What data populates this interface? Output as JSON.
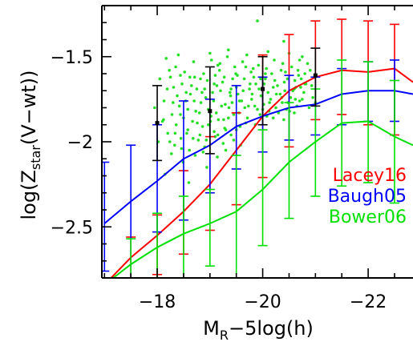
{
  "chart_data": {
    "type": "line",
    "title": "",
    "xlabel": {
      "main": "M",
      "sub": "R",
      "rest": "−5log(h)"
    },
    "ylabel": {
      "main": "log(Z",
      "sub": "star",
      "rest": "(V−wt))"
    },
    "xlim": [
      -16.95,
      -22.85
    ],
    "ylim": [
      -2.8,
      -1.2
    ],
    "xticks": [
      {
        "value": -18,
        "label": "−18"
      },
      {
        "value": -20,
        "label": "−20"
      },
      {
        "value": -22,
        "label": "−22"
      }
    ],
    "yticks": [
      {
        "value": -1.5,
        "label": "−1.5"
      },
      {
        "value": -2.0,
        "label": "−2"
      },
      {
        "value": -2.5,
        "label": "−2.5"
      }
    ],
    "legend_position": "right",
    "series": [
      {
        "name": "Lacey16",
        "color": "#ff0000",
        "points": [
          {
            "x": -17.0,
            "y": -2.84,
            "lo": -2.84,
            "hi": -2.84
          },
          {
            "x": -17.5,
            "y": -2.68,
            "lo": -2.9,
            "hi": -2.56
          },
          {
            "x": -18.0,
            "y": -2.55,
            "lo": -2.78,
            "hi": -2.43
          },
          {
            "x": -18.5,
            "y": -2.41,
            "lo": -2.66,
            "hi": -2.17
          },
          {
            "x": -19.0,
            "y": -2.25,
            "lo": -2.52,
            "hi": -1.97
          },
          {
            "x": -19.5,
            "y": -2.05,
            "lo": -2.37,
            "hi": -1.83
          },
          {
            "x": -20.0,
            "y": -1.85,
            "lo": -2.21,
            "hi": -1.49
          },
          {
            "x": -20.5,
            "y": -1.7,
            "lo": -2.03,
            "hi": -1.37
          },
          {
            "x": -21.0,
            "y": -1.62,
            "lo": -1.87,
            "hi": -1.29
          },
          {
            "x": -21.5,
            "y": -1.58,
            "lo": -1.84,
            "hi": -1.28
          },
          {
            "x": -22.0,
            "y": -1.59,
            "lo": -1.9,
            "hi": -1.29
          },
          {
            "x": -22.5,
            "y": -1.57,
            "lo": -1.96,
            "hi": -1.31
          },
          {
            "x": -22.85,
            "y": -1.65,
            "lo": -1.65,
            "hi": -1.65
          }
        ]
      },
      {
        "name": "Baugh05",
        "color": "#0000ff",
        "points": [
          {
            "x": -17.0,
            "y": -2.48,
            "lo": -2.76,
            "hi": -2.12
          },
          {
            "x": -17.5,
            "y": -2.35,
            "lo": -2.85,
            "hi": -2.02
          },
          {
            "x": -18.0,
            "y": -2.23,
            "lo": -2.53,
            "hi": -1.9
          },
          {
            "x": -18.5,
            "y": -2.1,
            "lo": -2.46,
            "hi": -1.76
          },
          {
            "x": -19.0,
            "y": -2.02,
            "lo": -2.3,
            "hi": -1.75
          },
          {
            "x": -19.5,
            "y": -1.91,
            "lo": -2.16,
            "hi": -1.67
          },
          {
            "x": -20.0,
            "y": -1.85,
            "lo": -2.06,
            "hi": -1.62
          },
          {
            "x": -20.5,
            "y": -1.8,
            "lo": -1.99,
            "hi": -1.61
          },
          {
            "x": -21.0,
            "y": -1.78,
            "lo": -1.96,
            "hi": -1.62
          },
          {
            "x": -21.5,
            "y": -1.72,
            "lo": -1.9,
            "hi": -1.57
          },
          {
            "x": -22.0,
            "y": -1.7,
            "lo": -1.88,
            "hi": -1.53
          },
          {
            "x": -22.5,
            "y": -1.7,
            "lo": -1.88,
            "hi": -1.52
          },
          {
            "x": -22.85,
            "y": -1.72,
            "lo": -1.72,
            "hi": -1.72
          }
        ]
      },
      {
        "name": "Bower06",
        "color": "#00e000",
        "points": [
          {
            "x": -17.0,
            "y": -2.84,
            "lo": -2.84,
            "hi": -2.84
          },
          {
            "x": -17.5,
            "y": -2.72,
            "lo": -2.92,
            "hi": -2.57
          },
          {
            "x": -18.0,
            "y": -2.62,
            "lo": -2.85,
            "hi": -2.42
          },
          {
            "x": -18.5,
            "y": -2.54,
            "lo": -2.8,
            "hi": -2.32
          },
          {
            "x": -19.0,
            "y": -2.48,
            "lo": -2.73,
            "hi": -2.28
          },
          {
            "x": -19.5,
            "y": -2.41,
            "lo": -2.82,
            "hi": -2.08
          },
          {
            "x": -20.0,
            "y": -2.28,
            "lo": -2.61,
            "hi": -1.93
          },
          {
            "x": -20.5,
            "y": -2.12,
            "lo": -2.45,
            "hi": -1.77
          },
          {
            "x": -21.0,
            "y": -2.0,
            "lo": -2.32,
            "hi": -1.69
          },
          {
            "x": -21.5,
            "y": -1.89,
            "lo": -2.26,
            "hi": -1.52
          },
          {
            "x": -22.0,
            "y": -1.88,
            "lo": -2.24,
            "hi": -1.53
          },
          {
            "x": -22.5,
            "y": -1.97,
            "lo": -2.36,
            "hi": -1.64
          },
          {
            "x": -22.85,
            "y": -2.02,
            "lo": -2.02,
            "hi": -2.02
          }
        ]
      }
    ],
    "observed_points": {
      "color": "#000000",
      "points": [
        {
          "x": -18.0,
          "y": -1.89,
          "lo": -2.11,
          "hi": -1.67
        },
        {
          "x": -19.0,
          "y": -1.82,
          "lo": -2.07,
          "hi": -1.56
        },
        {
          "x": -20.0,
          "y": -1.69,
          "lo": -1.9,
          "hi": -1.5
        },
        {
          "x": -21.0,
          "y": -1.61,
          "lo": -1.79,
          "hi": -1.45
        }
      ]
    },
    "scatter": {
      "color": "#22e022",
      "points": [
        [
          -18.17,
          -1.51
        ],
        [
          -18.23,
          -1.58
        ],
        [
          -18.31,
          -1.68
        ],
        [
          -18.42,
          -1.79
        ],
        [
          -18.5,
          -1.86
        ],
        [
          -18.56,
          -1.95
        ],
        [
          -18.63,
          -1.72
        ],
        [
          -18.71,
          -1.62
        ],
        [
          -18.8,
          -1.83
        ],
        [
          -18.86,
          -1.91
        ],
        [
          -18.92,
          -1.74
        ],
        [
          -19.01,
          -1.88
        ],
        [
          -19.08,
          -1.66
        ],
        [
          -19.15,
          -1.55
        ],
        [
          -19.22,
          -1.79
        ],
        [
          -19.3,
          -1.93
        ],
        [
          -19.38,
          -1.71
        ],
        [
          -19.45,
          -1.84
        ],
        [
          -19.52,
          -1.61
        ],
        [
          -19.6,
          -1.76
        ],
        [
          -19.68,
          -1.89
        ],
        [
          -19.75,
          -1.69
        ],
        [
          -19.82,
          -1.57
        ],
        [
          -19.9,
          -1.81
        ],
        [
          -19.97,
          -1.73
        ],
        [
          -20.05,
          -1.63
        ],
        [
          -20.13,
          -1.77
        ],
        [
          -20.2,
          -1.86
        ],
        [
          -20.28,
          -1.67
        ],
        [
          -20.36,
          -1.74
        ],
        [
          -20.43,
          -1.59
        ],
        [
          -20.51,
          -1.82
        ],
        [
          -20.6,
          -1.69
        ],
        [
          -20.68,
          -1.61
        ],
        [
          -20.75,
          -1.75
        ],
        [
          -20.82,
          -1.66
        ],
        [
          -20.9,
          -1.58
        ],
        [
          -18.25,
          -1.62
        ],
        [
          -18.38,
          -1.73
        ],
        [
          -18.47,
          -1.66
        ],
        [
          -18.58,
          -1.81
        ],
        [
          -18.67,
          -1.88
        ],
        [
          -18.75,
          -1.69
        ],
        [
          -18.83,
          -1.77
        ],
        [
          -18.95,
          -1.64
        ],
        [
          -19.05,
          -1.71
        ],
        [
          -19.12,
          -1.83
        ],
        [
          -19.2,
          -1.7
        ],
        [
          -19.27,
          -1.62
        ],
        [
          -19.35,
          -1.86
        ],
        [
          -19.42,
          -1.77
        ],
        [
          -19.5,
          -1.68
        ],
        [
          -19.57,
          -1.91
        ],
        [
          -19.65,
          -1.63
        ],
        [
          -19.73,
          -1.79
        ],
        [
          -19.8,
          -1.72
        ],
        [
          -19.87,
          -1.66
        ],
        [
          -19.95,
          -1.84
        ],
        [
          -20.02,
          -1.78
        ],
        [
          -20.1,
          -1.71
        ],
        [
          -20.17,
          -1.6
        ],
        [
          -20.25,
          -1.8
        ],
        [
          -20.33,
          -1.72
        ],
        [
          -20.41,
          -1.65
        ],
        [
          -20.48,
          -1.77
        ],
        [
          -20.57,
          -1.7
        ],
        [
          -20.65,
          -1.79
        ],
        [
          -20.72,
          -1.68
        ],
        [
          -20.8,
          -1.6
        ],
        [
          -18.2,
          -1.95
        ],
        [
          -18.33,
          -2.02
        ],
        [
          -18.45,
          -1.98
        ],
        [
          -18.61,
          -2.05
        ],
        [
          -18.78,
          -1.99
        ],
        [
          -18.9,
          -2.03
        ],
        [
          -19.1,
          -1.97
        ],
        [
          -19.25,
          -2.01
        ],
        [
          -19.4,
          -1.96
        ],
        [
          -18.13,
          -1.76
        ],
        [
          -18.28,
          -1.84
        ],
        [
          -18.52,
          -1.59
        ],
        [
          -18.69,
          -1.53
        ],
        [
          -18.88,
          -1.6
        ],
        [
          -19.03,
          -1.52
        ],
        [
          -19.18,
          -1.58
        ],
        [
          -19.33,
          -1.5
        ],
        [
          -19.47,
          -1.56
        ],
        [
          -19.62,
          -1.53
        ],
        [
          -19.78,
          -1.59
        ],
        [
          -19.92,
          -1.55
        ],
        [
          -20.07,
          -1.57
        ],
        [
          -20.22,
          -1.52
        ],
        [
          -20.38,
          -1.54
        ],
        [
          -20.55,
          -1.56
        ],
        [
          -20.7,
          -1.52
        ],
        [
          -20.85,
          -1.54
        ],
        [
          -18.1,
          -1.88
        ],
        [
          -18.36,
          -1.9
        ],
        [
          -18.54,
          -1.76
        ],
        [
          -18.73,
          -1.82
        ],
        [
          -18.97,
          -1.9
        ],
        [
          -19.16,
          -1.87
        ],
        [
          -19.36,
          -1.8
        ],
        [
          -19.55,
          -1.83
        ],
        [
          -19.71,
          -1.86
        ],
        [
          -19.85,
          -1.79
        ],
        [
          -20.0,
          -1.81
        ],
        [
          -20.15,
          -1.75
        ],
        [
          -20.3,
          -1.83
        ],
        [
          -20.45,
          -1.81
        ],
        [
          -20.62,
          -1.75
        ],
        [
          -20.78,
          -1.71
        ],
        [
          -20.93,
          -1.67
        ],
        [
          -18.19,
          -1.69
        ],
        [
          -18.44,
          -1.61
        ],
        [
          -18.65,
          -1.67
        ],
        [
          -18.85,
          -1.71
        ],
        [
          -19.07,
          -1.76
        ],
        [
          -19.24,
          -1.65
        ],
        [
          -19.43,
          -1.63
        ],
        [
          -19.63,
          -1.7
        ],
        [
          -19.83,
          -1.62
        ],
        [
          -20.03,
          -1.66
        ],
        [
          -20.23,
          -1.64
        ],
        [
          -20.42,
          -1.7
        ],
        [
          -20.61,
          -1.64
        ],
        [
          -20.8,
          -1.66
        ],
        [
          -18.27,
          -2.07
        ],
        [
          -18.49,
          -2.12
        ],
        [
          -18.72,
          -2.08
        ],
        [
          -18.94,
          -2.15
        ],
        [
          -19.14,
          -2.09
        ],
        [
          -19.3,
          -2.05
        ],
        [
          -18.15,
          -2.19
        ],
        [
          -18.6,
          -2.24
        ],
        [
          -18.87,
          -2.06
        ],
        [
          -19.58,
          -2.02
        ],
        [
          -19.0,
          -1.48
        ],
        [
          -19.35,
          -1.46
        ],
        [
          -19.7,
          -1.49
        ],
        [
          -20.1,
          -1.47
        ],
        [
          -20.5,
          -1.48
        ],
        [
          -20.75,
          -1.5
        ],
        [
          -18.4,
          -1.49
        ],
        [
          -19.9,
          -1.29
        ],
        [
          -20.4,
          -1.41
        ],
        [
          -18.05,
          -1.63
        ],
        [
          -17.95,
          -1.8
        ],
        [
          -18.02,
          -2.0
        ],
        [
          -20.95,
          -1.74
        ],
        [
          -20.88,
          -1.8
        ],
        [
          -21.0,
          -1.77
        ],
        [
          -18.3,
          -1.77
        ],
        [
          -18.55,
          -1.71
        ],
        [
          -18.82,
          -1.63
        ],
        [
          -19.1,
          -1.61
        ],
        [
          -19.39,
          -1.73
        ],
        [
          -19.66,
          -1.8
        ],
        [
          -19.93,
          -1.69
        ],
        [
          -20.2,
          -1.68
        ],
        [
          -20.47,
          -1.63
        ],
        [
          -20.67,
          -1.58
        ],
        [
          -18.58,
          -1.93
        ],
        [
          -18.81,
          -1.96
        ],
        [
          -19.08,
          -1.94
        ],
        [
          -19.28,
          -1.92
        ],
        [
          -19.5,
          -1.93
        ],
        [
          -18.44,
          -1.84
        ],
        [
          -19.19,
          -1.54
        ],
        [
          -19.49,
          -1.6
        ],
        [
          -19.76,
          -1.66
        ],
        [
          -20.05,
          -1.6
        ],
        [
          -20.35,
          -1.58
        ],
        [
          -20.63,
          -1.68
        ],
        [
          -18.7,
          -1.76
        ],
        [
          -18.97,
          -1.81
        ],
        [
          -19.26,
          -1.87
        ],
        [
          -19.53,
          -1.72
        ],
        [
          -19.79,
          -1.75
        ],
        [
          -20.08,
          -1.85
        ],
        [
          -20.37,
          -1.77
        ],
        [
          -20.6,
          -1.83
        ],
        [
          -18.35,
          -1.56
        ],
        [
          -18.62,
          -1.62
        ],
        [
          -18.9,
          -1.69
        ],
        [
          -19.13,
          -1.67
        ],
        [
          -19.4,
          -1.69
        ],
        [
          -19.68,
          -1.56
        ],
        [
          -19.96,
          -1.63
        ],
        [
          -20.26,
          -1.72
        ],
        [
          -20.53,
          -1.74
        ],
        [
          -20.73,
          -1.63
        ],
        [
          -18.24,
          -2.0
        ],
        [
          -18.46,
          -2.04
        ],
        [
          -18.68,
          -1.98
        ],
        [
          -18.93,
          -1.99
        ],
        [
          -19.15,
          -1.96
        ],
        [
          -19.45,
          -1.99
        ],
        [
          -18.12,
          -1.87
        ],
        [
          -18.34,
          -1.95
        ],
        [
          -18.76,
          -1.89
        ],
        [
          -19.02,
          -1.85
        ],
        [
          -19.29,
          -1.78
        ],
        [
          -19.56,
          -1.76
        ],
        [
          -19.86,
          -1.9
        ],
        [
          -20.12,
          -1.82
        ],
        [
          -20.4,
          -1.87
        ],
        [
          -20.7,
          -1.76
        ]
      ]
    }
  }
}
